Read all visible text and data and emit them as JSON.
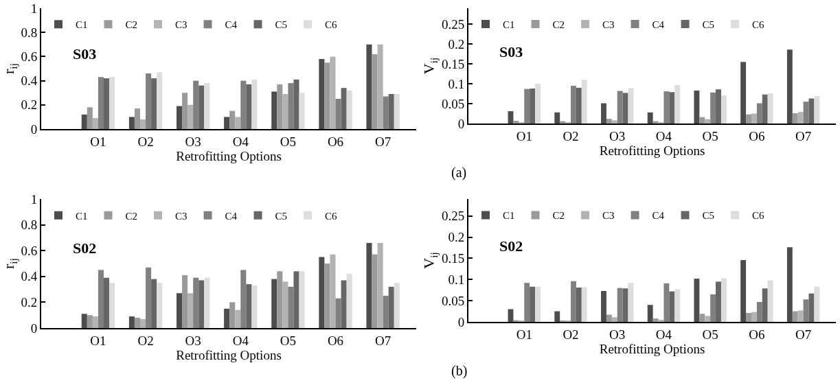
{
  "chart_data": [
    {
      "type": "bar",
      "ylabel": "r$_{ij}$",
      "xlabel": "Retrofitting Options",
      "annotations": [
        "S03"
      ],
      "categories": [
        "O1",
        "O2",
        "O3",
        "O4",
        "O5",
        "O6",
        "O7"
      ],
      "ylim": [
        0,
        1
      ],
      "yticks": [
        0,
        0.2,
        0.4,
        0.6,
        0.8,
        1
      ],
      "legend": "top",
      "grid": false,
      "series": [
        {
          "name": "C1",
          "color": "#4d4d4d",
          "values": [
            0.12,
            0.1,
            0.19,
            0.1,
            0.31,
            0.58,
            0.7
          ]
        },
        {
          "name": "C2",
          "color": "#9a9a9a",
          "values": [
            0.18,
            0.17,
            0.3,
            0.15,
            0.37,
            0.55,
            0.62
          ]
        },
        {
          "name": "C3",
          "color": "#b3b3b3",
          "values": [
            0.09,
            0.08,
            0.2,
            0.1,
            0.29,
            0.6,
            0.7
          ]
        },
        {
          "name": "C4",
          "color": "#808080",
          "values": [
            0.43,
            0.46,
            0.4,
            0.4,
            0.38,
            0.25,
            0.27
          ]
        },
        {
          "name": "C5",
          "color": "#666666",
          "values": [
            0.42,
            0.42,
            0.36,
            0.37,
            0.41,
            0.34,
            0.29
          ]
        },
        {
          "name": "C6",
          "color": "#dddddd",
          "values": [
            0.43,
            0.47,
            0.38,
            0.41,
            0.3,
            0.32,
            0.29
          ]
        }
      ]
    },
    {
      "type": "bar",
      "ylabel": "V$_{ij}$",
      "xlabel": "Retrofitting Options",
      "annotations": [
        "S03",
        "(a)"
      ],
      "categories": [
        "O1",
        "O2",
        "O3",
        "O4",
        "O5",
        "O6",
        "O7"
      ],
      "ylim": [
        0,
        0.29
      ],
      "yticks": [
        0,
        0.05,
        0.1,
        0.15,
        0.2,
        0.25
      ],
      "legend": "top",
      "grid": false,
      "series": [
        {
          "name": "C1",
          "color": "#4d4d4d",
          "values": [
            0.031,
            0.028,
            0.051,
            0.028,
            0.083,
            0.155,
            0.186
          ]
        },
        {
          "name": "C2",
          "color": "#9a9a9a",
          "values": [
            0.007,
            0.006,
            0.012,
            0.006,
            0.016,
            0.023,
            0.026
          ]
        },
        {
          "name": "C3",
          "color": "#b3b3b3",
          "values": [
            0.003,
            0.002,
            0.008,
            0.003,
            0.011,
            0.025,
            0.029
          ]
        },
        {
          "name": "C4",
          "color": "#808080",
          "values": [
            0.087,
            0.095,
            0.082,
            0.081,
            0.078,
            0.051,
            0.055
          ]
        },
        {
          "name": "C5",
          "color": "#666666",
          "values": [
            0.088,
            0.09,
            0.077,
            0.079,
            0.086,
            0.073,
            0.063
          ]
        },
        {
          "name": "C6",
          "color": "#dddddd",
          "values": [
            0.1,
            0.11,
            0.089,
            0.097,
            0.071,
            0.076,
            0.069
          ]
        }
      ]
    },
    {
      "type": "bar",
      "ylabel": "r$_{ij}$",
      "xlabel": "Retrofitting Options",
      "annotations": [
        "S02"
      ],
      "categories": [
        "O1",
        "O2",
        "O3",
        "O4",
        "O5",
        "O6",
        "O7"
      ],
      "ylim": [
        0,
        1
      ],
      "yticks": [
        0,
        0.2,
        0.4,
        0.6,
        0.8,
        1
      ],
      "legend": "top",
      "grid": false,
      "series": [
        {
          "name": "C1",
          "color": "#4d4d4d",
          "values": [
            0.11,
            0.09,
            0.27,
            0.15,
            0.38,
            0.55,
            0.66
          ]
        },
        {
          "name": "C2",
          "color": "#9a9a9a",
          "values": [
            0.1,
            0.08,
            0.41,
            0.2,
            0.44,
            0.5,
            0.57
          ]
        },
        {
          "name": "C3",
          "color": "#b3b3b3",
          "values": [
            0.09,
            0.07,
            0.27,
            0.14,
            0.36,
            0.57,
            0.66
          ]
        },
        {
          "name": "C4",
          "color": "#808080",
          "values": [
            0.45,
            0.47,
            0.39,
            0.45,
            0.32,
            0.23,
            0.25
          ]
        },
        {
          "name": "C5",
          "color": "#666666",
          "values": [
            0.39,
            0.38,
            0.37,
            0.34,
            0.44,
            0.37,
            0.32
          ]
        },
        {
          "name": "C6",
          "color": "#dddddd",
          "values": [
            0.35,
            0.35,
            0.39,
            0.33,
            0.44,
            0.42,
            0.35
          ]
        }
      ]
    },
    {
      "type": "bar",
      "ylabel": "V$_{ij}$",
      "xlabel": "Retrofitting Options",
      "annotations": [
        "S02",
        "(b)"
      ],
      "categories": [
        "O1",
        "O2",
        "O3",
        "O4",
        "O5",
        "O6",
        "O7"
      ],
      "ylim": [
        0,
        0.29
      ],
      "yticks": [
        0,
        0.05,
        0.1,
        0.15,
        0.2,
        0.25
      ],
      "legend": "top",
      "grid": false,
      "series": [
        {
          "name": "C1",
          "color": "#4d4d4d",
          "values": [
            0.03,
            0.025,
            0.073,
            0.04,
            0.102,
            0.146,
            0.176
          ]
        },
        {
          "name": "C2",
          "color": "#9a9a9a",
          "values": [
            0.004,
            0.003,
            0.017,
            0.008,
            0.019,
            0.021,
            0.025
          ]
        },
        {
          "name": "C3",
          "color": "#b3b3b3",
          "values": [
            0.003,
            0.002,
            0.011,
            0.005,
            0.014,
            0.023,
            0.027
          ]
        },
        {
          "name": "C4",
          "color": "#808080",
          "values": [
            0.092,
            0.096,
            0.08,
            0.091,
            0.065,
            0.047,
            0.053
          ]
        },
        {
          "name": "C5",
          "color": "#666666",
          "values": [
            0.083,
            0.081,
            0.079,
            0.072,
            0.095,
            0.079,
            0.067
          ]
        },
        {
          "name": "C6",
          "color": "#dddddd",
          "values": [
            0.083,
            0.082,
            0.092,
            0.077,
            0.103,
            0.098,
            0.083
          ]
        }
      ]
    }
  ]
}
